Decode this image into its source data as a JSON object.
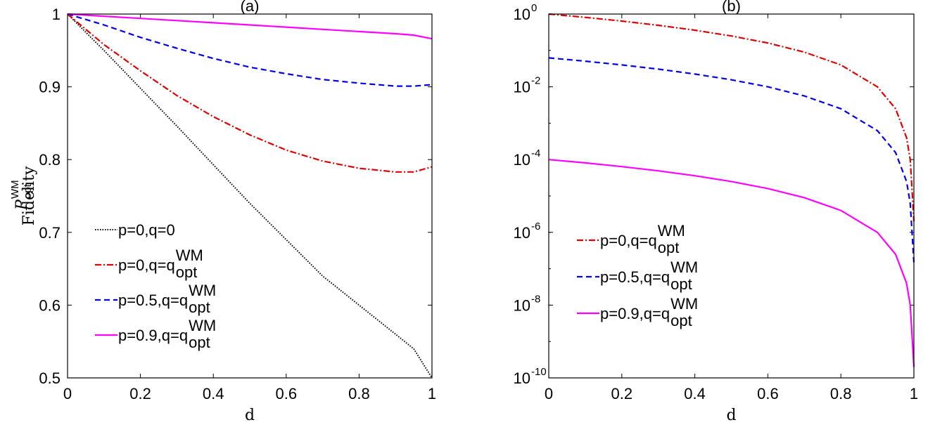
{
  "chart_data": [
    {
      "type": "line",
      "title": "(a)",
      "xlabel": "d",
      "ylabel": "Fidelity",
      "xlim": [
        0,
        1
      ],
      "ylim": [
        0.5,
        1
      ],
      "xticks": [
        "0",
        "0.2",
        "0.4",
        "0.6",
        "0.8",
        "1"
      ],
      "yticks": [
        "0.5",
        "0.6",
        "0.7",
        "0.8",
        "0.9",
        "1"
      ],
      "legend_position": "bottom-left",
      "series": [
        {
          "name": "p=0,q=0",
          "label_main": "p=0,q=0",
          "label_sup": "",
          "label_sub": "",
          "color": "#000000",
          "style": "dotted",
          "x": [
            0,
            0.1,
            0.2,
            0.3,
            0.4,
            0.5,
            0.6,
            0.7,
            0.8,
            0.9,
            0.95,
            1
          ],
          "y": [
            1,
            0.95,
            0.898,
            0.846,
            0.793,
            0.74,
            0.69,
            0.64,
            0.6,
            0.56,
            0.54,
            0.5
          ]
        },
        {
          "name": "p=0,q=qoptWM",
          "label_main": "p=0,q=q",
          "label_sup": "WM",
          "label_sub": "opt",
          "color": "#e00000",
          "style": "dashdot",
          "x": [
            0,
            0.1,
            0.2,
            0.3,
            0.4,
            0.5,
            0.6,
            0.7,
            0.8,
            0.9,
            0.95,
            1
          ],
          "y": [
            1,
            0.958,
            0.922,
            0.888,
            0.859,
            0.834,
            0.813,
            0.798,
            0.788,
            0.783,
            0.783,
            0.79
          ]
        },
        {
          "name": "p=0.5,q=qoptWM",
          "label_main": "p=0.5,q=q",
          "label_sup": "WM",
          "label_sub": "opt",
          "color": "#0000ee",
          "style": "dashed",
          "x": [
            0,
            0.1,
            0.2,
            0.3,
            0.4,
            0.5,
            0.6,
            0.7,
            0.8,
            0.9,
            0.95,
            1
          ],
          "y": [
            1,
            0.985,
            0.968,
            0.953,
            0.939,
            0.927,
            0.918,
            0.91,
            0.905,
            0.901,
            0.901,
            0.903
          ]
        },
        {
          "name": "p=0.9,q=qoptWM",
          "label_main": "p=0.9,q=q",
          "label_sup": "WM",
          "label_sub": "opt",
          "color": "#ff00ff",
          "style": "solid",
          "x": [
            0,
            0.1,
            0.2,
            0.3,
            0.4,
            0.5,
            0.6,
            0.7,
            0.8,
            0.9,
            0.95,
            1
          ],
          "y": [
            1,
            0.997,
            0.994,
            0.991,
            0.988,
            0.985,
            0.982,
            0.979,
            0.976,
            0.973,
            0.971,
            0.966
          ]
        }
      ]
    },
    {
      "type": "line",
      "title": "(b)",
      "xlabel": "d",
      "ylabel": "P",
      "ylabel_sup": "WM",
      "ylabel_sub": "opt",
      "yscale": "log",
      "xlim": [
        0,
        1
      ],
      "ylim": [
        1e-10,
        1
      ],
      "xticks": [
        "0",
        "0.2",
        "0.4",
        "0.6",
        "0.8",
        "1"
      ],
      "yticks": [
        {
          "base": "10",
          "exp": "-10"
        },
        {
          "base": "10",
          "exp": "-8"
        },
        {
          "base": "10",
          "exp": "-6"
        },
        {
          "base": "10",
          "exp": "-4"
        },
        {
          "base": "10",
          "exp": "-2"
        },
        {
          "base": "10",
          "exp": "0"
        }
      ],
      "legend_position": "left",
      "series": [
        {
          "name": "p=0,q=qoptWM",
          "label_main": "p=0,q=q",
          "label_sup": "WM",
          "label_sub": "opt",
          "color": "#e00000",
          "style": "dashdot",
          "x": [
            0,
            0.1,
            0.2,
            0.3,
            0.4,
            0.5,
            0.6,
            0.7,
            0.8,
            0.9,
            0.95,
            0.98,
            0.99,
            1
          ],
          "y": [
            1,
            0.81,
            0.64,
            0.49,
            0.36,
            0.25,
            0.16,
            0.09,
            0.04,
            0.01,
            0.0025,
            0.0004,
            0.0001,
            2e-06
          ]
        },
        {
          "name": "p=0.5,q=qoptWM",
          "label_main": "p=0.5,q=q",
          "label_sup": "WM",
          "label_sub": "opt",
          "color": "#0000ee",
          "style": "dashed",
          "x": [
            0,
            0.1,
            0.2,
            0.3,
            0.4,
            0.5,
            0.6,
            0.7,
            0.8,
            0.9,
            0.95,
            0.98,
            0.99,
            1
          ],
          "y": [
            0.0625,
            0.0506,
            0.04,
            0.0306,
            0.0225,
            0.0156,
            0.01,
            0.0056,
            0.0025,
            0.000625,
            0.000156,
            2.5e-05,
            6.25e-06,
            1.5e-07
          ]
        },
        {
          "name": "p=0.9,q=qoptWM",
          "label_main": "p=0.9,q=q",
          "label_sup": "WM",
          "label_sub": "opt",
          "color": "#ff00ff",
          "style": "solid",
          "x": [
            0,
            0.1,
            0.2,
            0.3,
            0.4,
            0.5,
            0.6,
            0.7,
            0.8,
            0.9,
            0.95,
            0.98,
            0.99,
            1
          ],
          "y": [
            0.0001,
            8.1e-05,
            6.4e-05,
            4.9e-05,
            3.6e-05,
            2.5e-05,
            1.6e-05,
            9e-06,
            4e-06,
            1e-06,
            2.5e-07,
            4e-08,
            1e-08,
            2e-10
          ]
        }
      ]
    }
  ]
}
